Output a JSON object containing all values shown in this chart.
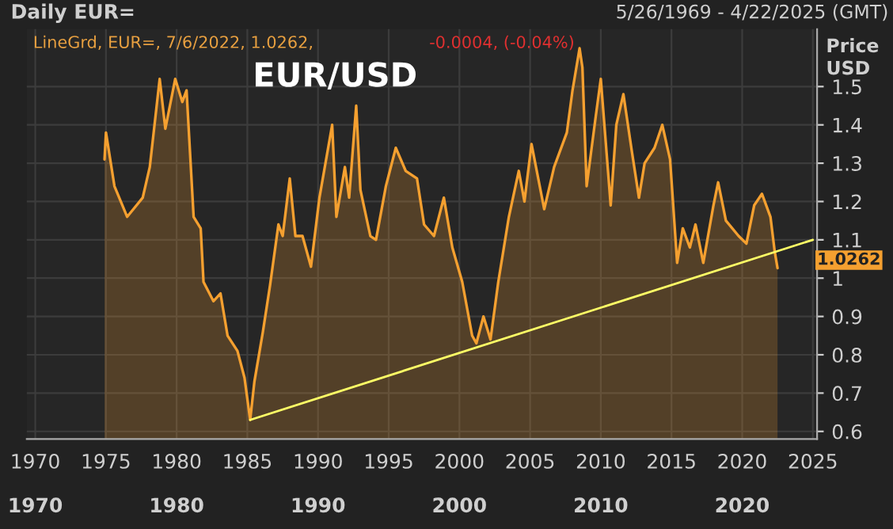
{
  "chart_data": {
    "type": "area",
    "title": "EUR/USD",
    "subtitle": "Daily EUR=",
    "ylabel": "Price\nUSD",
    "annotations": [
      "5/26/1969 - 4/22/2025 (GMT)",
      "LineGrd, EUR=, 7/6/2022, 1.0262, ",
      "-0.0004, (-0.04%)",
      {
        "text": "1.0262",
        "x": 2022.5,
        "y": 1.0262
      }
    ],
    "series": [
      {
        "color": "#f5a030",
        "x": [
          1974.9,
          1975.0,
          1975.6,
          1976.5,
          1977.6,
          1978.1,
          1978.8,
          1979.2,
          1979.9,
          1980.4,
          1980.7,
          1981.2,
          1981.7,
          1981.9,
          1982.6,
          1983.1,
          1983.6,
          1984.3,
          1984.8,
          1985.2,
          1985.5,
          1986.1,
          1986.6,
          1987.2,
          1987.5,
          1988.0,
          1988.4,
          1988.9,
          1989.5,
          1990.1,
          1991.0,
          1991.3,
          1991.9,
          1992.2,
          1992.7,
          1993.0,
          1993.7,
          1994.1,
          1994.8,
          1995.5,
          1996.2,
          1997.0,
          1997.5,
          1998.2,
          1998.9,
          1999.5,
          2000.2,
          2000.9,
          2001.2,
          2001.7,
          2002.2,
          2002.75,
          2003.5,
          2004.2,
          2004.6,
          2005.1,
          2006.0,
          2006.7,
          2007.6,
          2008.0,
          2008.5,
          2008.7,
          2009.0,
          2009.6,
          2010.0,
          2010.7,
          2011.1,
          2011.6,
          2012.2,
          2012.7,
          2013.1,
          2013.8,
          2014.35,
          2014.9,
          2015.4,
          2015.8,
          2016.3,
          2016.7,
          2017.25,
          2017.97,
          2018.3,
          2018.85,
          2019.75,
          2020.3,
          2020.85,
          2021.4,
          2022.0,
          2022.3,
          2022.5
        ],
        "values": [
          1.31,
          1.38,
          1.24,
          1.16,
          1.21,
          1.29,
          1.52,
          1.39,
          1.52,
          1.46,
          1.49,
          1.16,
          1.13,
          0.99,
          0.94,
          0.96,
          0.85,
          0.81,
          0.74,
          0.63,
          0.73,
          0.86,
          0.98,
          1.14,
          1.11,
          1.26,
          1.11,
          1.11,
          1.03,
          1.21,
          1.4,
          1.16,
          1.29,
          1.21,
          1.45,
          1.23,
          1.11,
          1.1,
          1.24,
          1.34,
          1.28,
          1.26,
          1.14,
          1.11,
          1.21,
          1.08,
          0.99,
          0.85,
          0.83,
          0.9,
          0.84,
          0.99,
          1.16,
          1.28,
          1.2,
          1.35,
          1.18,
          1.29,
          1.38,
          1.49,
          1.6,
          1.55,
          1.24,
          1.41,
          1.52,
          1.19,
          1.4,
          1.48,
          1.33,
          1.21,
          1.3,
          1.34,
          1.4,
          1.31,
          1.04,
          1.13,
          1.08,
          1.14,
          1.04,
          1.19,
          1.25,
          1.15,
          1.11,
          1.09,
          1.19,
          1.22,
          1.16,
          1.07,
          1.0262
        ]
      },
      {
        "type": "line",
        "color": "#ffff66",
        "x": [
          1985.2,
          2025.0
        ],
        "values": [
          0.63,
          1.1
        ]
      }
    ],
    "xlim": [
      1969.4,
      2025.3
    ],
    "ylim": [
      0.58,
      1.65
    ],
    "xticks": [
      1970,
      1975,
      1980,
      1985,
      1990,
      1995,
      2000,
      2005,
      2010,
      2015,
      2020,
      2025
    ],
    "yticks": [
      0.6,
      0.7,
      0.8,
      0.9,
      1,
      1.1,
      1.2,
      1.3,
      1.4,
      1.5
    ],
    "x2lim": [
      1969.4,
      2025.3
    ],
    "x2ticks": [
      1970,
      1980,
      1990,
      2000,
      2010,
      2020
    ],
    "grid": true
  }
}
